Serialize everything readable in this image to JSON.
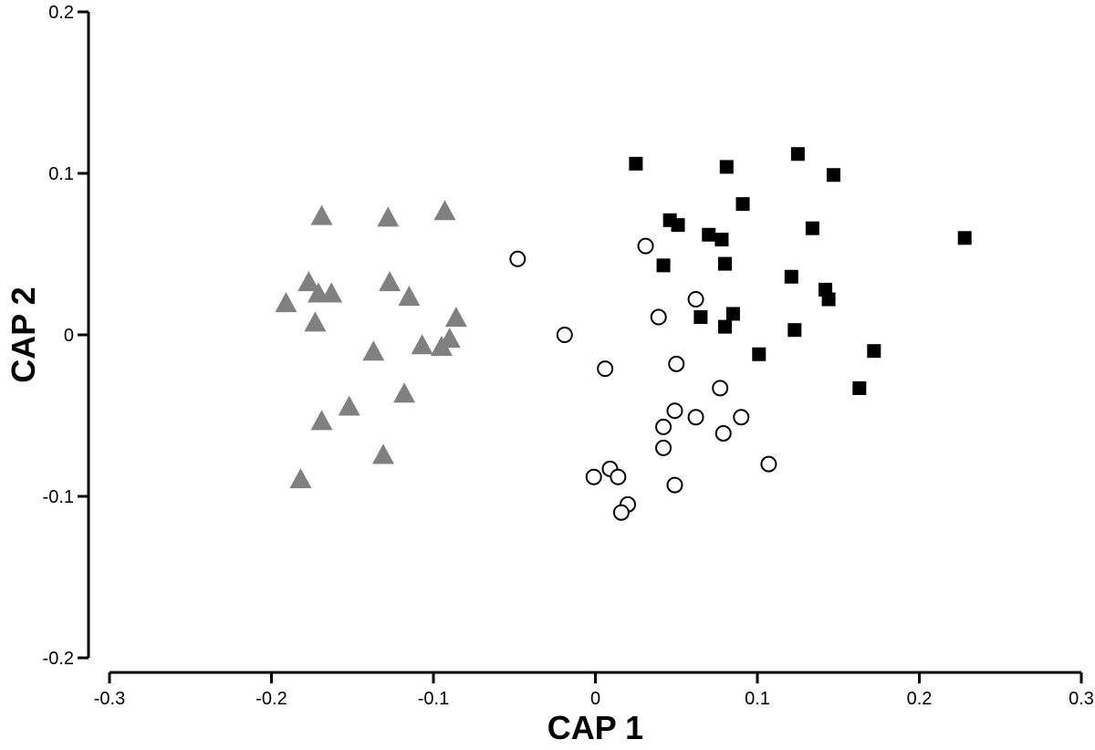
{
  "chart_data": {
    "type": "scatter",
    "title": "",
    "xlabel": "CAP 1",
    "ylabel": "CAP 2",
    "xlim": [
      -0.3,
      0.3
    ],
    "ylim": [
      -0.2,
      0.2
    ],
    "xticks": [
      -0.3,
      -0.2,
      -0.1,
      0,
      0.1,
      0.2,
      0.3
    ],
    "yticks": [
      -0.2,
      -0.1,
      0,
      0.1,
      0.2
    ],
    "xtick_labels": [
      "-0.3",
      "-0.2",
      "-0.1",
      "0",
      "0.1",
      "0.2",
      "0.3"
    ],
    "ytick_labels": [
      "-0.2",
      "-0.1",
      "0",
      "0.1",
      "0.2"
    ],
    "grid": false,
    "legend": "none",
    "series": [
      {
        "marker": "triangle",
        "color": "#808080",
        "points": [
          [
            -0.169,
            0.073
          ],
          [
            -0.128,
            0.072
          ],
          [
            -0.093,
            0.076
          ],
          [
            -0.177,
            0.032
          ],
          [
            -0.171,
            0.025
          ],
          [
            -0.163,
            0.025
          ],
          [
            -0.191,
            0.019
          ],
          [
            -0.127,
            0.032
          ],
          [
            -0.115,
            0.023
          ],
          [
            -0.173,
            0.007
          ],
          [
            -0.086,
            0.01
          ],
          [
            -0.137,
            -0.011
          ],
          [
            -0.107,
            -0.007
          ],
          [
            -0.095,
            -0.008
          ],
          [
            -0.09,
            -0.003
          ],
          [
            -0.118,
            -0.037
          ],
          [
            -0.152,
            -0.045
          ],
          [
            -0.169,
            -0.054
          ],
          [
            -0.131,
            -0.075
          ],
          [
            -0.182,
            -0.09
          ]
        ]
      },
      {
        "marker": "open-circle",
        "color": "#000000",
        "points": [
          [
            -0.048,
            0.047
          ],
          [
            0.031,
            0.055
          ],
          [
            0.062,
            0.022
          ],
          [
            0.039,
            0.011
          ],
          [
            -0.019,
            0.0
          ],
          [
            0.006,
            -0.021
          ],
          [
            0.05,
            -0.018
          ],
          [
            0.077,
            -0.033
          ],
          [
            0.049,
            -0.047
          ],
          [
            0.062,
            -0.051
          ],
          [
            0.09,
            -0.051
          ],
          [
            0.042,
            -0.057
          ],
          [
            0.079,
            -0.061
          ],
          [
            0.042,
            -0.07
          ],
          [
            0.107,
            -0.08
          ],
          [
            0.009,
            -0.083
          ],
          [
            -0.001,
            -0.088
          ],
          [
            0.014,
            -0.088
          ],
          [
            0.049,
            -0.093
          ],
          [
            0.02,
            -0.105
          ],
          [
            0.016,
            -0.11
          ]
        ]
      },
      {
        "marker": "filled-square",
        "color": "#000000",
        "points": [
          [
            0.025,
            0.106
          ],
          [
            0.081,
            0.104
          ],
          [
            0.125,
            0.112
          ],
          [
            0.147,
            0.099
          ],
          [
            0.091,
            0.081
          ],
          [
            0.046,
            0.071
          ],
          [
            0.051,
            0.068
          ],
          [
            0.07,
            0.062
          ],
          [
            0.078,
            0.059
          ],
          [
            0.134,
            0.066
          ],
          [
            0.228,
            0.06
          ],
          [
            0.042,
            0.043
          ],
          [
            0.08,
            0.044
          ],
          [
            0.121,
            0.036
          ],
          [
            0.142,
            0.028
          ],
          [
            0.144,
            0.022
          ],
          [
            0.065,
            0.011
          ],
          [
            0.085,
            0.013
          ],
          [
            0.08,
            0.005
          ],
          [
            0.123,
            0.003
          ],
          [
            0.101,
            -0.012
          ],
          [
            0.172,
            -0.01
          ],
          [
            0.163,
            -0.033
          ]
        ]
      }
    ]
  }
}
